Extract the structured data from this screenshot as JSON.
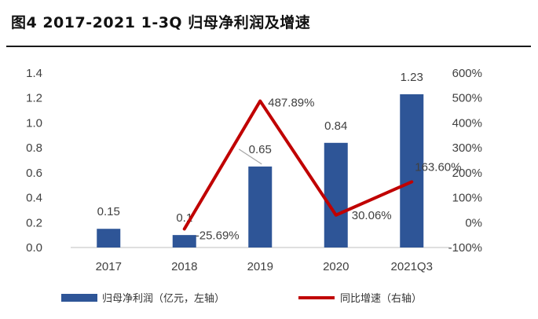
{
  "title": "图4   2017-2021 1-3Q 归母净利润及增速",
  "chart_data": {
    "type": "bar",
    "categories": [
      "2017",
      "2018",
      "2019",
      "2020",
      "2021Q3"
    ],
    "series": [
      {
        "name": "归母净利润（亿元，左轴）",
        "type": "bar",
        "axis": "left",
        "color": "#2E5597",
        "values": [
          0.15,
          0.1,
          0.65,
          0.84,
          1.23
        ],
        "labels": [
          "0.15",
          "0.1",
          "0.65",
          "0.84",
          "1.23"
        ]
      },
      {
        "name": "同比增速（右轴）",
        "type": "line",
        "axis": "right",
        "color": "#C00000",
        "values": [
          null,
          -25.69,
          487.89,
          30.06,
          163.6
        ],
        "labels": [
          "",
          "-25.69%",
          "487.89%",
          "30.06%",
          "163.60%"
        ]
      }
    ],
    "y_left": {
      "ticks": [
        "0.0",
        "0.2",
        "0.4",
        "0.6",
        "0.8",
        "1.0",
        "1.2",
        "1.4"
      ],
      "range": [
        0,
        1.4
      ]
    },
    "y_right": {
      "ticks": [
        "-100%",
        "0%",
        "100%",
        "200%",
        "300%",
        "400%",
        "500%",
        "600%"
      ],
      "range": [
        -100,
        600
      ]
    },
    "grid": false,
    "legend_position": "bottom"
  }
}
